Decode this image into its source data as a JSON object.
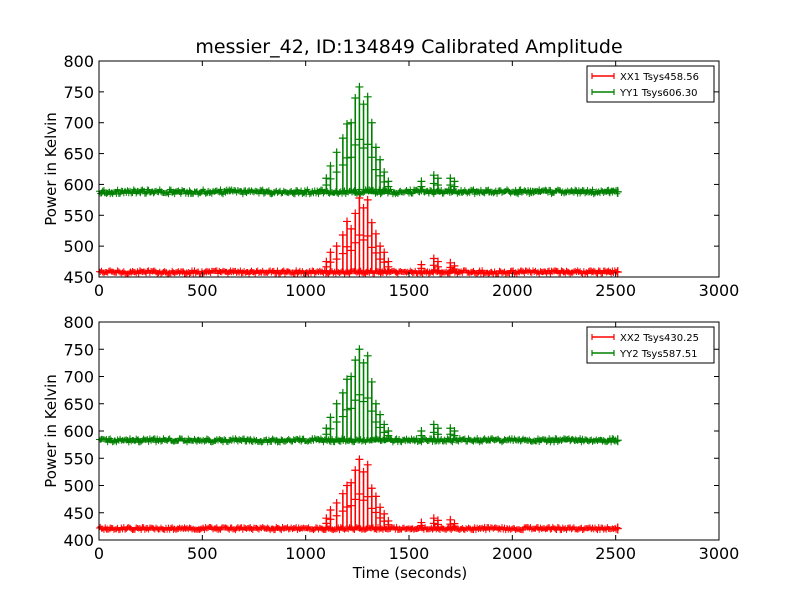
{
  "chart_data": [
    {
      "type": "line",
      "title": "messier_42, ID:134849 Calibrated Amplitude",
      "xlabel": "",
      "ylabel": "Power in Kelvin",
      "xlim": [
        0,
        3000
      ],
      "ylim": [
        450,
        800
      ],
      "xticks": [
        0,
        500,
        1000,
        1500,
        2000,
        2500,
        3000
      ],
      "yticks": [
        450,
        500,
        550,
        600,
        650,
        700,
        750,
        800
      ],
      "legend_position": "top-right",
      "marker": "+",
      "series": [
        {
          "name": "XX1 Tsys458.56",
          "color": "#ff0000",
          "baseline": 458,
          "noise": 3,
          "x_range": [
            0,
            2510
          ],
          "spikes": [
            {
              "x": 1100,
              "y": 475
            },
            {
              "x": 1120,
              "y": 490
            },
            {
              "x": 1150,
              "y": 500
            },
            {
              "x": 1180,
              "y": 518
            },
            {
              "x": 1200,
              "y": 540
            },
            {
              "x": 1220,
              "y": 528
            },
            {
              "x": 1240,
              "y": 553
            },
            {
              "x": 1260,
              "y": 578
            },
            {
              "x": 1280,
              "y": 562
            },
            {
              "x": 1300,
              "y": 575
            },
            {
              "x": 1320,
              "y": 538
            },
            {
              "x": 1340,
              "y": 520
            },
            {
              "x": 1360,
              "y": 500
            },
            {
              "x": 1380,
              "y": 490
            },
            {
              "x": 1400,
              "y": 475
            },
            {
              "x": 1560,
              "y": 470
            },
            {
              "x": 1620,
              "y": 480
            },
            {
              "x": 1640,
              "y": 475
            },
            {
              "x": 1700,
              "y": 473
            },
            {
              "x": 1720,
              "y": 468
            }
          ]
        },
        {
          "name": "YY1 Tsys606.30",
          "color": "#008000",
          "baseline": 588,
          "noise": 4,
          "x_range": [
            0,
            2510
          ],
          "spikes": [
            {
              "x": 1100,
              "y": 610
            },
            {
              "x": 1120,
              "y": 630
            },
            {
              "x": 1150,
              "y": 652
            },
            {
              "x": 1180,
              "y": 675
            },
            {
              "x": 1200,
              "y": 698
            },
            {
              "x": 1220,
              "y": 700
            },
            {
              "x": 1240,
              "y": 740
            },
            {
              "x": 1260,
              "y": 758
            },
            {
              "x": 1280,
              "y": 730
            },
            {
              "x": 1300,
              "y": 742
            },
            {
              "x": 1320,
              "y": 700
            },
            {
              "x": 1340,
              "y": 660
            },
            {
              "x": 1360,
              "y": 640
            },
            {
              "x": 1380,
              "y": 620
            },
            {
              "x": 1400,
              "y": 605
            },
            {
              "x": 1560,
              "y": 605
            },
            {
              "x": 1620,
              "y": 615
            },
            {
              "x": 1640,
              "y": 610
            },
            {
              "x": 1700,
              "y": 610
            },
            {
              "x": 1720,
              "y": 605
            }
          ]
        }
      ]
    },
    {
      "type": "line",
      "title": "",
      "xlabel": "Time (seconds)",
      "ylabel": "Power in Kelvin",
      "xlim": [
        0,
        3000
      ],
      "ylim": [
        400,
        800
      ],
      "xticks": [
        0,
        500,
        1000,
        1500,
        2000,
        2500,
        3000
      ],
      "yticks": [
        400,
        450,
        500,
        550,
        600,
        650,
        700,
        750,
        800
      ],
      "legend_position": "top-right",
      "marker": "+",
      "series": [
        {
          "name": "XX2 Tsys430.25",
          "color": "#ff0000",
          "baseline": 421,
          "noise": 3,
          "x_range": [
            0,
            2510
          ],
          "spikes": [
            {
              "x": 1100,
              "y": 440
            },
            {
              "x": 1120,
              "y": 455
            },
            {
              "x": 1150,
              "y": 468
            },
            {
              "x": 1180,
              "y": 485
            },
            {
              "x": 1200,
              "y": 500
            },
            {
              "x": 1220,
              "y": 505
            },
            {
              "x": 1240,
              "y": 528
            },
            {
              "x": 1260,
              "y": 548
            },
            {
              "x": 1280,
              "y": 525
            },
            {
              "x": 1300,
              "y": 538
            },
            {
              "x": 1320,
              "y": 495
            },
            {
              "x": 1340,
              "y": 480
            },
            {
              "x": 1360,
              "y": 460
            },
            {
              "x": 1380,
              "y": 448
            },
            {
              "x": 1400,
              "y": 435
            },
            {
              "x": 1560,
              "y": 432
            },
            {
              "x": 1620,
              "y": 440
            },
            {
              "x": 1640,
              "y": 436
            },
            {
              "x": 1700,
              "y": 437
            },
            {
              "x": 1720,
              "y": 430
            }
          ]
        },
        {
          "name": "YY2 Tsys587.51",
          "color": "#008000",
          "baseline": 583,
          "noise": 4,
          "x_range": [
            0,
            2510
          ],
          "spikes": [
            {
              "x": 1100,
              "y": 605
            },
            {
              "x": 1120,
              "y": 625
            },
            {
              "x": 1150,
              "y": 650
            },
            {
              "x": 1180,
              "y": 670
            },
            {
              "x": 1200,
              "y": 695
            },
            {
              "x": 1220,
              "y": 700
            },
            {
              "x": 1240,
              "y": 730
            },
            {
              "x": 1260,
              "y": 750
            },
            {
              "x": 1280,
              "y": 725
            },
            {
              "x": 1300,
              "y": 738
            },
            {
              "x": 1320,
              "y": 690
            },
            {
              "x": 1340,
              "y": 650
            },
            {
              "x": 1360,
              "y": 630
            },
            {
              "x": 1380,
              "y": 612
            },
            {
              "x": 1400,
              "y": 600
            },
            {
              "x": 1560,
              "y": 600
            },
            {
              "x": 1620,
              "y": 612
            },
            {
              "x": 1640,
              "y": 605
            },
            {
              "x": 1700,
              "y": 605
            },
            {
              "x": 1720,
              "y": 600
            }
          ]
        }
      ]
    }
  ]
}
